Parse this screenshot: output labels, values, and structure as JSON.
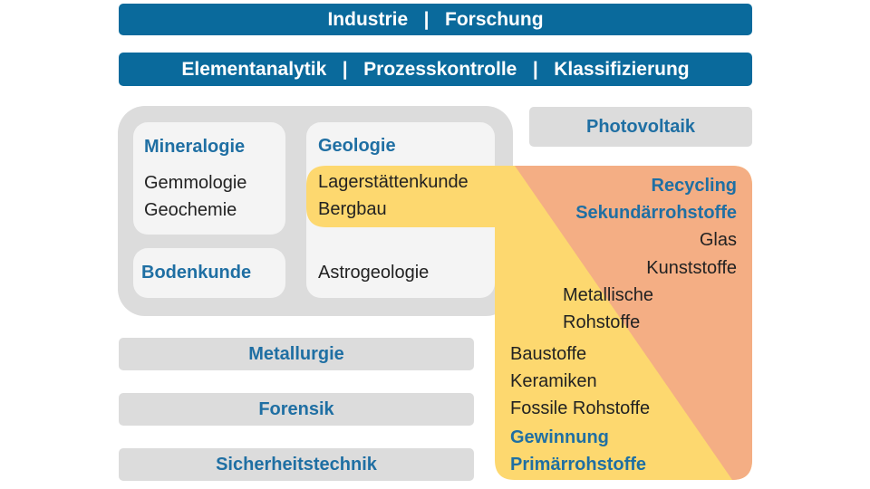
{
  "top_bar": "Industrie   |   Forschung",
  "second_bar": "Elementanalytik   |   Prozesskontrolle   |   Klassifizierung",
  "photovoltaik": "Photovoltaik",
  "mineralogie": {
    "title": "Mineralogie",
    "items": [
      "Gemmologie",
      "Geochemie"
    ]
  },
  "bodenkunde": "Bodenkunde",
  "geologie": {
    "title": "Geologie",
    "items": [
      "Lagerstättenkunde",
      "Bergbau"
    ],
    "extra": "Astrogeologie"
  },
  "side_bars": [
    "Metallurgie",
    "Forensik",
    "Sicherheitstechnik"
  ],
  "recycling": {
    "title": "Recycling",
    "subtitle": "Sekundärrohstoffe",
    "items": [
      "Glas",
      "Kunststoffe"
    ]
  },
  "middle_items": [
    "Metallische",
    "Rohstoffe"
  ],
  "gewinnung": {
    "items": [
      "Baustoffe",
      "Keramiken",
      "Fossile Rohstoffe"
    ],
    "title": "Gewinnung",
    "subtitle": "Primärrohstoffe"
  },
  "colors": {
    "blue": "#0a6a9c",
    "yellow": "#fdd86f",
    "orange": "#f4ae84",
    "gray": "#dcdcdc"
  }
}
